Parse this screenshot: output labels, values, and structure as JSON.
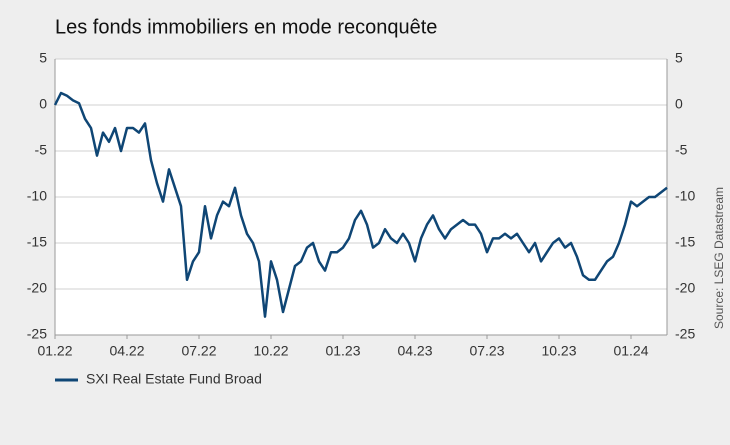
{
  "chart_data": {
    "type": "line",
    "title": "Les fonds immobiliers en mode reconquête",
    "source": "Source: LSEG Datastream",
    "categories": [
      "01.22",
      null,
      null,
      null,
      null,
      null,
      null,
      null,
      null,
      null,
      null,
      null,
      "04.22",
      null,
      null,
      null,
      null,
      null,
      null,
      null,
      null,
      null,
      null,
      null,
      "07.22",
      null,
      null,
      null,
      null,
      null,
      null,
      null,
      null,
      null,
      null,
      null,
      "10.22",
      null,
      null,
      null,
      null,
      null,
      null,
      null,
      null,
      null,
      null,
      null,
      "01.23",
      null,
      null,
      null,
      null,
      null,
      null,
      null,
      null,
      null,
      null,
      null,
      "04.23",
      null,
      null,
      null,
      null,
      null,
      null,
      null,
      null,
      null,
      null,
      null,
      "07.23",
      null,
      null,
      null,
      null,
      null,
      null,
      null,
      null,
      null,
      null,
      null,
      "10.23",
      null,
      null,
      null,
      null,
      null,
      null,
      null,
      null,
      null,
      null,
      null,
      "01.24",
      null,
      null,
      null,
      null,
      null,
      null
    ],
    "series": [
      {
        "name": "SXI Real Estate Fund Broad",
        "color": "#0f4675",
        "values": [
          0,
          1.3,
          1.0,
          0.5,
          0.2,
          -1.5,
          -2.5,
          -5.5,
          -3.0,
          -4.0,
          -2.5,
          -5,
          -2.5,
          -2.5,
          -3,
          -2,
          -6,
          -8.5,
          -10.5,
          -7,
          -9,
          -11,
          -19,
          -17,
          -16,
          -11,
          -14.5,
          -12,
          -10.5,
          -11,
          -9,
          -12,
          -14,
          -15,
          -17,
          -23,
          -17,
          -19,
          -22.5,
          -20,
          -17.5,
          -17,
          -15.5,
          -15,
          -17,
          -18,
          -16,
          -16,
          -15.5,
          -14.5,
          -12.5,
          -11.5,
          -13,
          -15.5,
          -15,
          -13.5,
          -14.5,
          -15,
          -14,
          -15,
          -17,
          -14.5,
          -13,
          -12,
          -13.5,
          -14.5,
          -13.5,
          -13,
          -12.5,
          -13,
          -13,
          -14,
          -16,
          -14.5,
          -14.5,
          -14,
          -14.5,
          -14,
          -15,
          -16,
          -15,
          -17,
          -16,
          -15,
          -14.5,
          -15.5,
          -15,
          -16.5,
          -18.5,
          -19,
          -19,
          -18,
          -17,
          -16.5,
          -15,
          -13,
          -10.5,
          -11,
          -10.5,
          -10,
          -10,
          -9.5,
          -9
        ]
      }
    ],
    "ylim": [
      -25,
      5
    ],
    "yticks": [
      5,
      0,
      -5,
      -10,
      -15,
      -20,
      -25
    ],
    "y2lim": [
      -25,
      5
    ],
    "y2ticks": [
      5,
      0,
      -5,
      -10,
      -15,
      -20,
      -25
    ],
    "grid": true
  }
}
